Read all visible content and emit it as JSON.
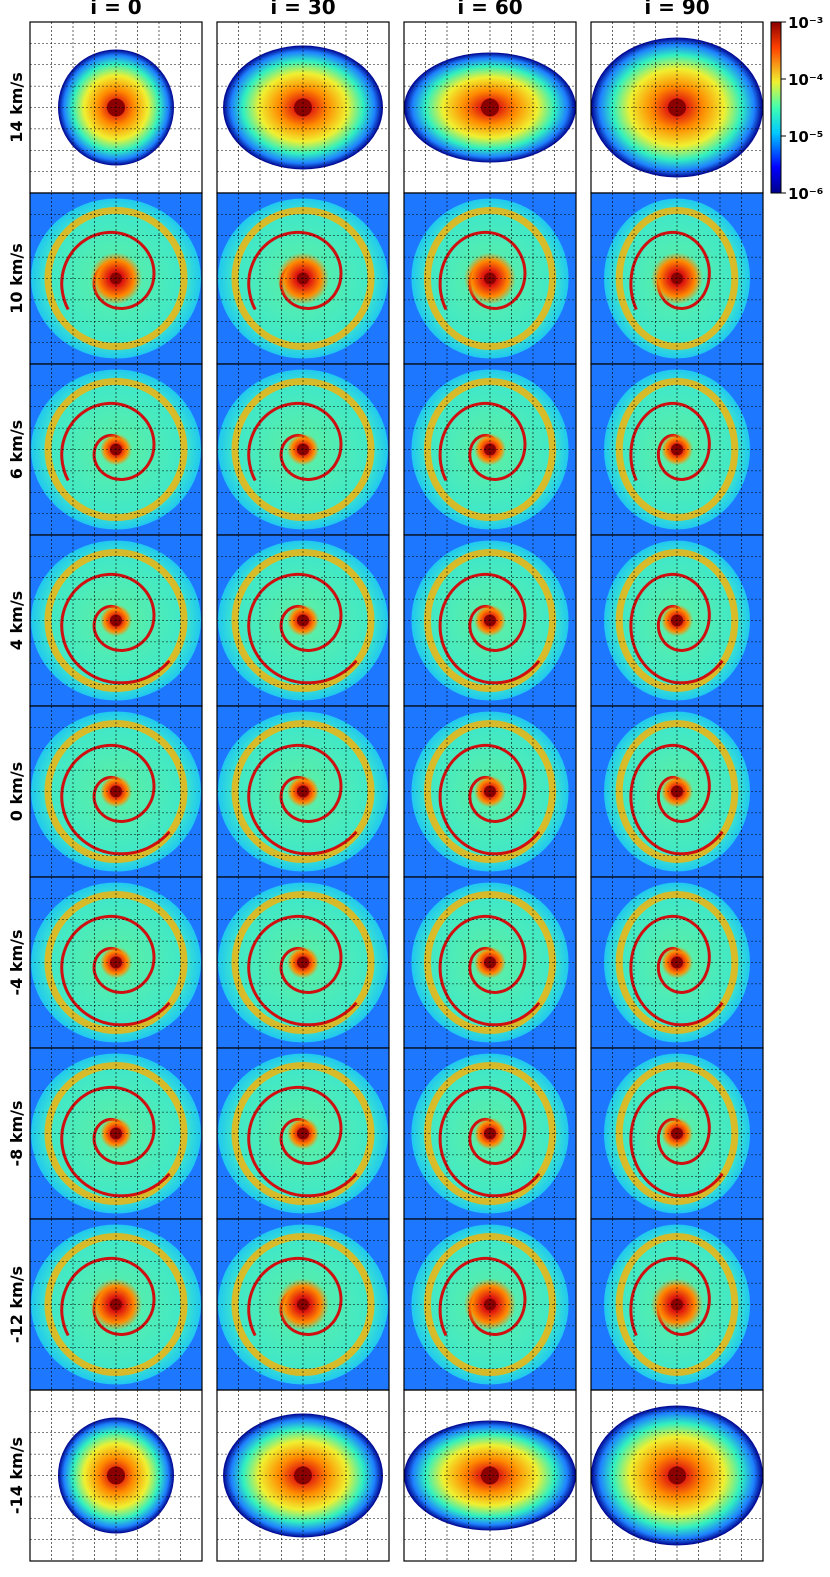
{
  "columns": [
    "i = 0",
    "i = 30",
    "i = 60",
    "i = 90"
  ],
  "rows": [
    "14 km/s",
    "10 km/s",
    "6 km/s",
    "4 km/s",
    "0 km/s",
    "-4 km/s",
    "-8 km/s",
    "-12 km/s",
    "-14 km/s"
  ],
  "colorbar": {
    "scale": "log",
    "lim": [
      1e-06,
      0.001
    ],
    "ticks": [
      {
        "value": 0.001,
        "label": "10⁻³"
      },
      {
        "value": 0.0001,
        "label": "10⁻⁴"
      },
      {
        "value": 1e-05,
        "label": "10⁻⁵"
      },
      {
        "value": 1e-06,
        "label": "10⁻⁶"
      }
    ]
  }
}
